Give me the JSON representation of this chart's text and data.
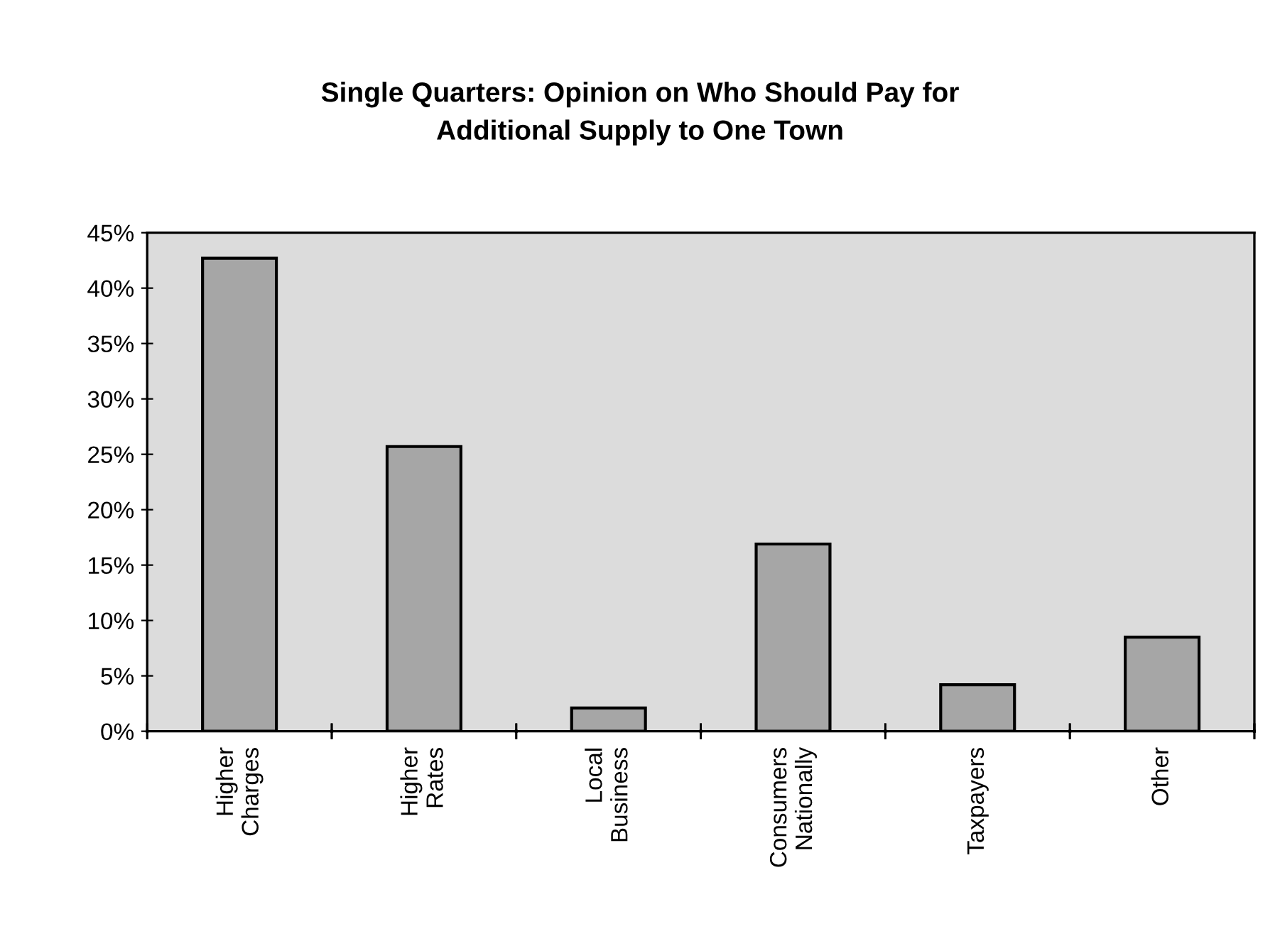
{
  "chart_data": {
    "type": "bar",
    "title": "Single Quarters: Opinion on Who Should Pay for\nAdditional Supply to One Town",
    "categories": [
      "Higher\nCharges",
      "Higher\nRates",
      "Local\nBusiness",
      "Consumers\nNationally",
      "Taxpayers",
      "Other"
    ],
    "values": [
      42.7,
      25.7,
      2.1,
      16.9,
      4.2,
      8.5
    ],
    "color": "#a6a6a6",
    "ylim": [
      0,
      45
    ],
    "yticks": [
      {
        "value": 0,
        "label": "0%"
      },
      {
        "value": 5,
        "label": "5%"
      },
      {
        "value": 10,
        "label": "10%"
      },
      {
        "value": 15,
        "label": "15%"
      },
      {
        "value": 20,
        "label": "20%"
      },
      {
        "value": 25,
        "label": "25%"
      },
      {
        "value": 30,
        "label": "30%"
      },
      {
        "value": 35,
        "label": "35%"
      },
      {
        "value": 40,
        "label": "40%"
      },
      {
        "value": 45,
        "label": "45%"
      }
    ],
    "grid": false
  }
}
